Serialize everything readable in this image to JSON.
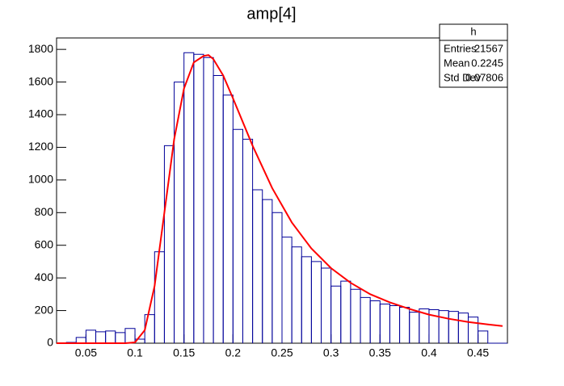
{
  "chart_data": {
    "type": "histogram",
    "title": "amp[4]",
    "bins": [
      0.02,
      0.03,
      0.04,
      0.05,
      0.06,
      0.07,
      0.08,
      0.09,
      0.1,
      0.11,
      0.12,
      0.13,
      0.14,
      0.15,
      0.16,
      0.17,
      0.18,
      0.19,
      0.2,
      0.21,
      0.22,
      0.23,
      0.24,
      0.25,
      0.26,
      0.27,
      0.28,
      0.29,
      0.3,
      0.31,
      0.32,
      0.33,
      0.34,
      0.35,
      0.36,
      0.37,
      0.38,
      0.39,
      0.4,
      0.41,
      0.42,
      0.43,
      0.44,
      0.45,
      0.46,
      0.47,
      0.48
    ],
    "values": [
      0,
      5,
      35,
      80,
      70,
      75,
      65,
      90,
      25,
      175,
      560,
      1210,
      1600,
      1780,
      1770,
      1750,
      1640,
      1520,
      1310,
      1250,
      940,
      880,
      800,
      650,
      590,
      530,
      500,
      460,
      350,
      380,
      330,
      280,
      260,
      240,
      230,
      220,
      190,
      210,
      205,
      200,
      195,
      185,
      160,
      75,
      0,
      0
    ],
    "color": "#000099",
    "fit": {
      "type": "line",
      "color": "#ff0000",
      "x": [
        0.02,
        0.09,
        0.1,
        0.11,
        0.12,
        0.13,
        0.14,
        0.15,
        0.16,
        0.17,
        0.175,
        0.18,
        0.19,
        0.2,
        0.22,
        0.24,
        0.26,
        0.28,
        0.3,
        0.32,
        0.34,
        0.36,
        0.38,
        0.4,
        0.42,
        0.44,
        0.46,
        0.475
      ],
      "values": [
        0,
        0,
        5,
        80,
        350,
        800,
        1250,
        1560,
        1720,
        1760,
        1765,
        1740,
        1640,
        1500,
        1210,
        950,
        740,
        580,
        460,
        370,
        300,
        250,
        210,
        175,
        150,
        130,
        115,
        105
      ]
    },
    "xlim": [
      0.02,
      0.48
    ],
    "ylim": [
      0,
      1870
    ],
    "xticks": [
      0.05,
      0.1,
      0.15,
      0.2,
      0.25,
      0.3,
      0.35,
      0.4,
      0.45
    ],
    "yticks": [
      0,
      200,
      400,
      600,
      800,
      1000,
      1200,
      1400,
      1600,
      1800
    ],
    "stats": {
      "title": "h",
      "rows": [
        [
          "Entries",
          21567
        ],
        [
          "Mean",
          0.2245
        ],
        [
          "Std Dev",
          0.07806
        ]
      ]
    }
  }
}
